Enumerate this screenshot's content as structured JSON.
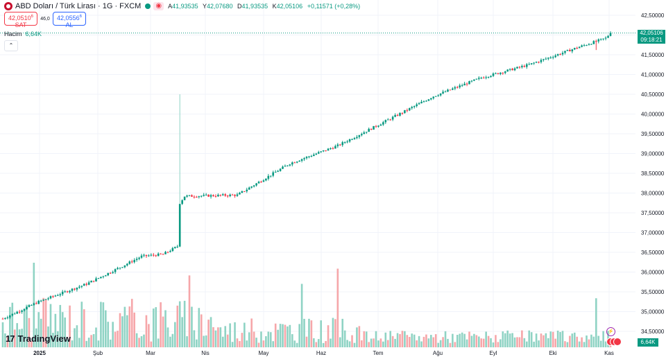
{
  "header": {
    "title": "ABD Doları / Türk Lirası · 1G · FXCM",
    "ohlc": [
      {
        "k": "A",
        "v": "41,93535"
      },
      {
        "k": "Y",
        "v": "42,07680"
      },
      {
        "k": "D",
        "v": "41,93535"
      },
      {
        "k": "K",
        "v": "42,05106"
      }
    ],
    "change": "+0,11571 (+0,28%)"
  },
  "trade": {
    "sell_price": "42,0510",
    "sell_price_sup": "6",
    "sell_label": "SAT",
    "spread": "46,0",
    "buy_price": "42,0556",
    "buy_price_sup": "6",
    "buy_label": "AL"
  },
  "volume_legend": {
    "label": "Hacim",
    "value": "6,64K"
  },
  "price_tag": {
    "price": "42,05106",
    "time": "09:18:21"
  },
  "volume_tag": "6,64K",
  "brand": "TradingView",
  "colors": {
    "up": "#089981",
    "down": "#f23645",
    "vol_up": "#8fd3c4",
    "vol_down": "#f6a6a9",
    "grid": "#f0f3fa"
  },
  "chart_data": {
    "type": "candlestick",
    "y_axis": {
      "ticks": [
        "42,50000",
        "42,00000",
        "41,50000",
        "41,00000",
        "40,50000",
        "40,00000",
        "39,50000",
        "39,00000",
        "38,50000",
        "38,00000",
        "37,50000",
        "37,00000",
        "36,50000",
        "36,00000",
        "35,50000",
        "35,00000",
        "34,50000"
      ],
      "ylim": [
        34.22,
        42.7
      ]
    },
    "x_axis": {
      "ticks": [
        "2025",
        "Şub",
        "Mar",
        "Nis",
        "May",
        "Haz",
        "Tem",
        "Ağu",
        "Eyl",
        "Eki",
        "Kas"
      ]
    },
    "last": 42.05106,
    "anchors": [
      {
        "i": 0,
        "v": 34.82
      },
      {
        "i": 15,
        "v": 35.25
      },
      {
        "i": 35,
        "v": 35.7
      },
      {
        "i": 50,
        "v": 36.15
      },
      {
        "i": 58,
        "v": 36.4
      },
      {
        "i": 67,
        "v": 36.45
      },
      {
        "i": 73,
        "v": 36.65
      },
      {
        "i": 74,
        "v": 37.75
      },
      {
        "i": 76,
        "v": 37.92
      },
      {
        "i": 98,
        "v": 37.95
      },
      {
        "i": 120,
        "v": 38.75
      },
      {
        "i": 140,
        "v": 39.2
      },
      {
        "i": 160,
        "v": 39.82
      },
      {
        "i": 180,
        "v": 40.45
      },
      {
        "i": 200,
        "v": 40.92
      },
      {
        "i": 220,
        "v": 41.25
      },
      {
        "i": 240,
        "v": 41.68
      },
      {
        "i": 252,
        "v": 41.92
      },
      {
        "i": 254,
        "v": 42.05
      }
    ],
    "spike": {
      "i": 74,
      "high": 40.5
    },
    "volume_peaks": [
      {
        "i": 13,
        "v": 1.0
      },
      {
        "i": 140,
        "v": 0.93
      },
      {
        "i": 78,
        "v": 0.85
      },
      {
        "i": 125,
        "v": 0.75
      },
      {
        "i": 248,
        "v": 0.58
      }
    ]
  }
}
